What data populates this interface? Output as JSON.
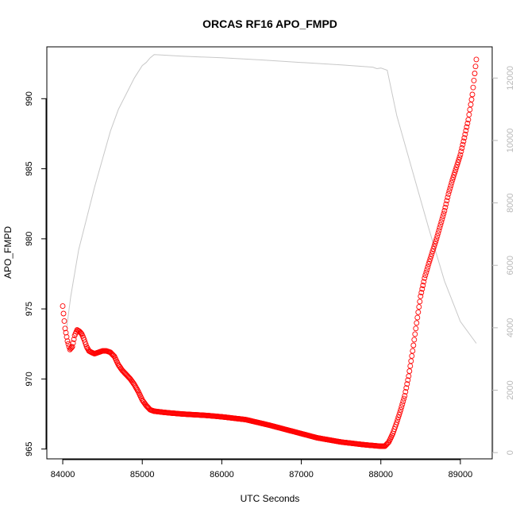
{
  "chart_data": {
    "type": "scatter",
    "title": "ORCAS RF16 APO_FMPD",
    "xlabel": "UTC Seconds",
    "ylabel": "APO_FMPD",
    "xlim": [
      83800,
      89400
    ],
    "ylim": [
      964.3,
      993.7
    ],
    "x_ticks": [
      84000,
      85000,
      86000,
      87000,
      88000,
      89000
    ],
    "y_ticks": [
      965,
      970,
      975,
      980,
      985,
      990
    ],
    "y2lim": [
      -200,
      13000
    ],
    "y2_ticks": [
      0,
      2000,
      4000,
      6000,
      8000,
      10000,
      12000
    ],
    "grid": false,
    "colors": {
      "points": "#ff0000",
      "line": "#c8c8c8",
      "right_axis": "#b8b8b8"
    },
    "series": [
      {
        "marker": "open-circle",
        "x": [
          84000,
          84030,
          84060,
          84090,
          84120,
          84150,
          84180,
          84210,
          84240,
          84270,
          84300,
          84330,
          84360,
          84400,
          84450,
          84500,
          84550,
          84600,
          84650,
          84700,
          84750,
          84800,
          84850,
          84900,
          84950,
          85000,
          85050,
          85100,
          85150,
          85300,
          85500,
          85800,
          86000,
          86300,
          86600,
          86800,
          87000,
          87200,
          87500,
          87800,
          88000,
          88050,
          88100,
          88150,
          88200,
          88250,
          88300,
          88350,
          88400,
          88450,
          88500,
          88550,
          88600,
          88650,
          88700,
          88750,
          88800,
          88850,
          88900,
          88950,
          89000,
          89050,
          89100,
          89150,
          89200
        ],
        "y": [
          975.2,
          973.6,
          972.7,
          972.1,
          972.3,
          973.1,
          973.5,
          973.4,
          973.2,
          972.8,
          972.3,
          972.0,
          971.9,
          971.8,
          971.9,
          972.0,
          972.0,
          971.9,
          971.6,
          971.0,
          970.6,
          970.3,
          970.0,
          969.6,
          969.1,
          968.5,
          968.1,
          967.8,
          967.7,
          967.6,
          967.5,
          967.4,
          967.3,
          967.1,
          966.7,
          966.4,
          966.1,
          965.8,
          965.5,
          965.3,
          965.2,
          965.2,
          965.5,
          966.1,
          966.9,
          967.8,
          968.8,
          970.2,
          972.0,
          974.0,
          975.9,
          977.2,
          978.2,
          979.1,
          980.0,
          981.0,
          982.0,
          983.2,
          984.2,
          985.1,
          986.0,
          987.2,
          988.5,
          990.3,
          992.8
        ]
      },
      {
        "type": "line",
        "axis": "right",
        "x": [
          84050,
          84100,
          84200,
          84300,
          84400,
          84500,
          84600,
          84700,
          84800,
          84900,
          85000,
          85050,
          85100,
          85150,
          85500,
          86000,
          86500,
          87000,
          87500,
          87900,
          87950,
          88000,
          88080,
          88200,
          88400,
          88600,
          88800,
          89000,
          89200
        ],
        "y": [
          4000,
          5000,
          6500,
          7500,
          8500,
          9400,
          10300,
          11000,
          11500,
          12000,
          12400,
          12500,
          12650,
          12750,
          12700,
          12650,
          12580,
          12500,
          12420,
          12350,
          12300,
          12320,
          12250,
          10800,
          9000,
          7200,
          5500,
          4200,
          3500
        ]
      }
    ]
  }
}
